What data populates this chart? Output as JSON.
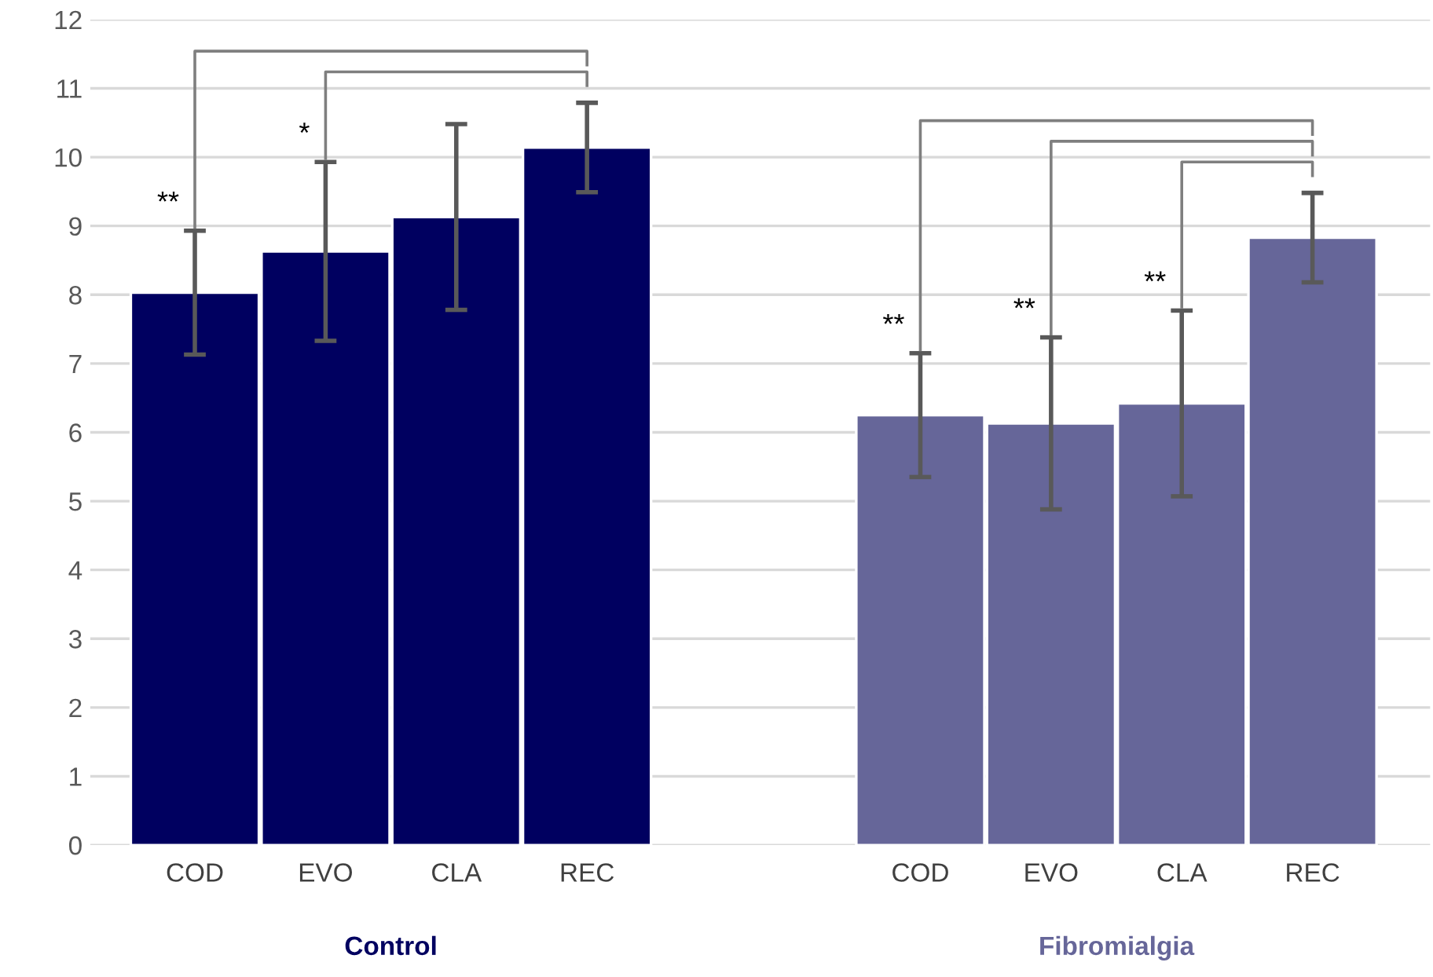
{
  "chart_data": {
    "type": "bar",
    "categories": [
      "COD",
      "EVO",
      "CLA",
      "REC",
      "COD",
      "EVO",
      "CLA",
      "REC"
    ],
    "series": [
      {
        "name": "Control",
        "color": "#000060",
        "values": [
          8.03,
          8.63,
          9.13,
          10.14,
          null,
          null,
          null,
          null
        ],
        "errors": [
          0.9,
          1.3,
          1.35,
          0.65,
          null,
          null,
          null,
          null
        ]
      },
      {
        "name": "Fibromialgia",
        "color": "#666699",
        "values": [
          null,
          null,
          null,
          null,
          6.25,
          6.13,
          6.42,
          8.83
        ],
        "errors": [
          null,
          null,
          null,
          null,
          0.9,
          1.25,
          1.35,
          0.65
        ]
      }
    ],
    "ylim": [
      0,
      12
    ],
    "yticks": [
      0,
      1,
      2,
      3,
      4,
      5,
      6,
      7,
      8,
      9,
      10,
      11,
      12
    ],
    "grid": "y",
    "legend": false,
    "annotations": [
      "**",
      "*",
      "**",
      "**",
      "**"
    ]
  }
}
